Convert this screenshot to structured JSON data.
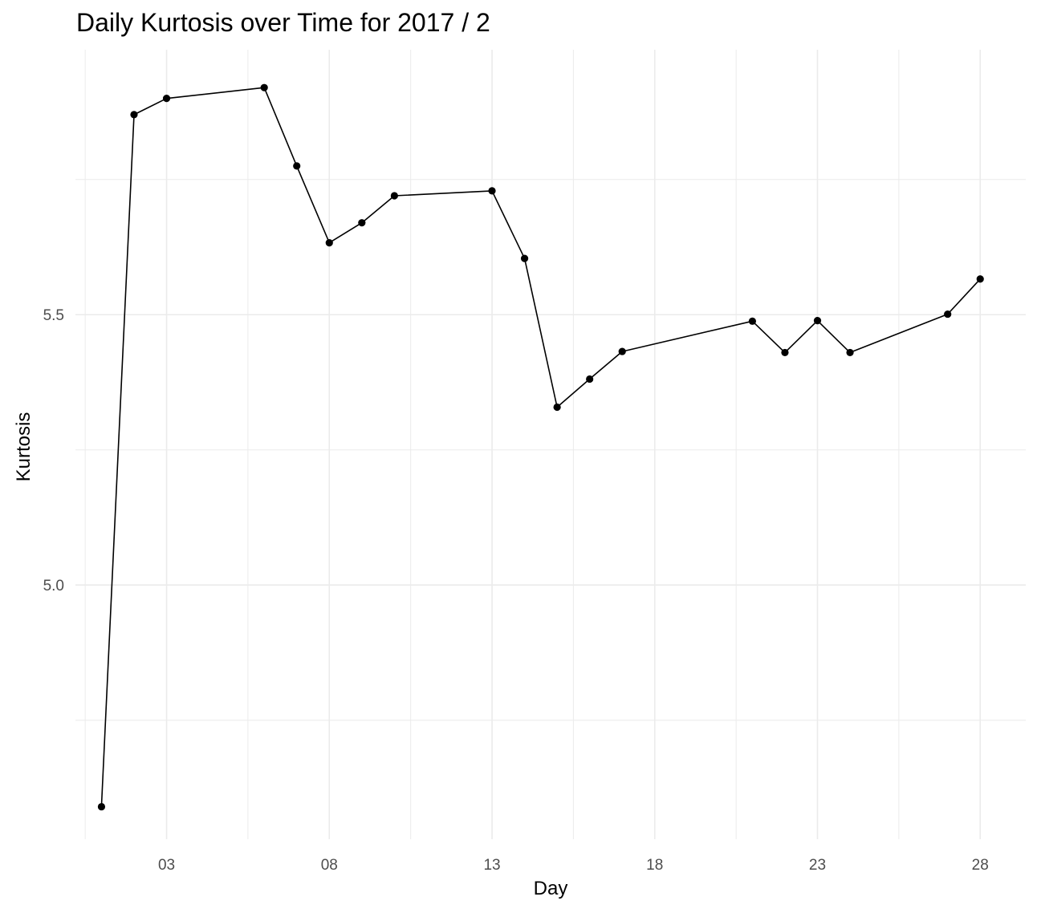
{
  "chart_data": {
    "type": "line",
    "title": "Daily Kurtosis over Time for 2017 / 2",
    "xlabel": "Day",
    "ylabel": "Kurtosis",
    "x_ticks": [
      3,
      8,
      13,
      18,
      23,
      28
    ],
    "x_tick_labels": [
      "03",
      "08",
      "13",
      "18",
      "23",
      "28"
    ],
    "y_ticks": [
      5.0,
      5.5
    ],
    "y_tick_labels": [
      "5.0",
      "5.5"
    ],
    "xlim": [
      0.2,
      29.4
    ],
    "ylim": [
      4.53,
      5.99
    ],
    "grid": true,
    "line_color": "#000000",
    "grid_color": "#ebebeb",
    "series": [
      {
        "x": [
          1,
          2,
          3,
          6,
          7,
          8,
          9,
          10,
          13,
          14,
          15,
          16,
          17,
          21,
          22,
          23,
          24,
          27,
          28
        ],
        "values": [
          4.59,
          5.87,
          5.9,
          5.92,
          5.775,
          5.633,
          5.67,
          5.72,
          5.729,
          5.604,
          5.329,
          5.381,
          5.432,
          5.488,
          5.43,
          5.489,
          5.43,
          5.501,
          5.566
        ]
      }
    ]
  }
}
